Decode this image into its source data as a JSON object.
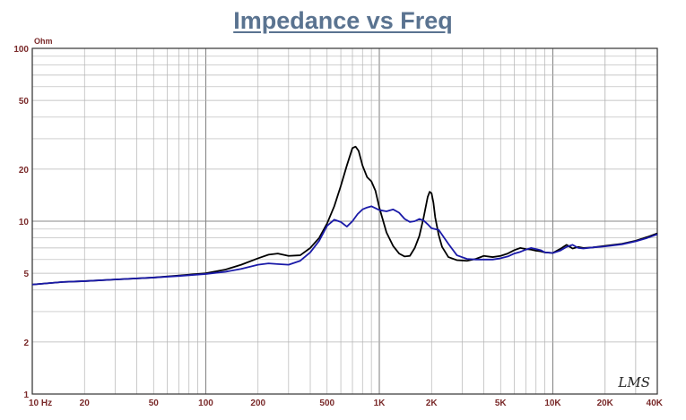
{
  "chart_data": {
    "type": "line",
    "title": "Impedance vs Freq",
    "ylabel_unit": "Ohm",
    "xscale": "log",
    "yscale": "log",
    "xlim": [
      10,
      40000
    ],
    "ylim": [
      1,
      100
    ],
    "grid": true,
    "y_ticks": [
      "100",
      "50",
      "20",
      "10",
      "5",
      "2",
      "1"
    ],
    "x_ticks": [
      "10  Hz",
      "20",
      "50",
      "100",
      "200",
      "500",
      "1K",
      "2K",
      "5K",
      "10K",
      "20K",
      "40K"
    ],
    "watermark": "LMS",
    "colors": {
      "black_series": "#000000",
      "blue_series": "#1a1aa8",
      "title": "#5a7390",
      "tick": "#7a2a2a"
    },
    "series": [
      {
        "color": "black",
        "x": [
          10,
          15,
          20,
          30,
          50,
          70,
          100,
          130,
          160,
          200,
          230,
          260,
          300,
          350,
          400,
          450,
          500,
          550,
          600,
          650,
          700,
          730,
          760,
          800,
          850,
          900,
          950,
          1000,
          1100,
          1200,
          1300,
          1400,
          1500,
          1600,
          1700,
          1800,
          1900,
          1950,
          2000,
          2050,
          2100,
          2200,
          2300,
          2500,
          2800,
          3200,
          3600,
          4000,
          4500,
          5000,
          5500,
          6000,
          6500,
          7000,
          7500,
          8000,
          8500,
          9000,
          10000,
          11000,
          12000,
          13000,
          14000,
          15000,
          17000,
          20000,
          25000,
          30000,
          35000,
          40000
        ],
        "y": [
          4.3,
          4.45,
          4.5,
          4.6,
          4.72,
          4.85,
          5.0,
          5.25,
          5.6,
          6.1,
          6.4,
          6.5,
          6.3,
          6.35,
          7.0,
          8.0,
          9.7,
          12.2,
          16.0,
          21.0,
          26.5,
          27.0,
          25.5,
          21.0,
          18.0,
          17.0,
          15.0,
          12.0,
          8.6,
          7.2,
          6.5,
          6.25,
          6.3,
          7.0,
          8.2,
          10.5,
          13.8,
          14.8,
          14.5,
          12.8,
          10.5,
          8.3,
          7.1,
          6.2,
          5.95,
          5.9,
          6.05,
          6.3,
          6.2,
          6.3,
          6.5,
          6.8,
          7.0,
          6.9,
          6.85,
          6.75,
          6.7,
          6.6,
          6.55,
          6.9,
          7.3,
          6.95,
          7.1,
          7.0,
          7.05,
          7.2,
          7.4,
          7.7,
          8.1,
          8.5
        ]
      },
      {
        "color": "blue",
        "x": [
          10,
          15,
          20,
          30,
          50,
          70,
          100,
          130,
          160,
          200,
          230,
          260,
          300,
          350,
          400,
          450,
          500,
          550,
          600,
          650,
          700,
          750,
          800,
          850,
          900,
          1000,
          1100,
          1200,
          1300,
          1400,
          1500,
          1600,
          1700,
          1800,
          1900,
          2000,
          2200,
          2500,
          2800,
          3200,
          3600,
          4000,
          4500,
          5000,
          5500,
          6000,
          6500,
          7000,
          7500,
          8000,
          8500,
          9000,
          10000,
          11000,
          12000,
          13000,
          14000,
          15000,
          17000,
          20000,
          25000,
          30000,
          35000,
          40000
        ],
        "y": [
          4.3,
          4.45,
          4.5,
          4.6,
          4.72,
          4.82,
          4.95,
          5.1,
          5.3,
          5.6,
          5.7,
          5.65,
          5.6,
          5.9,
          6.6,
          7.7,
          9.4,
          10.2,
          9.9,
          9.3,
          10.0,
          11.0,
          11.7,
          12.0,
          12.2,
          11.6,
          11.4,
          11.7,
          11.2,
          10.3,
          9.9,
          10.0,
          10.3,
          10.1,
          9.6,
          9.1,
          8.9,
          7.4,
          6.35,
          6.05,
          6.0,
          6.0,
          6.0,
          6.1,
          6.25,
          6.5,
          6.65,
          6.85,
          7.0,
          6.9,
          6.8,
          6.6,
          6.55,
          6.75,
          7.1,
          7.3,
          7.0,
          6.95,
          7.05,
          7.15,
          7.35,
          7.65,
          8.0,
          8.4
        ]
      }
    ]
  }
}
